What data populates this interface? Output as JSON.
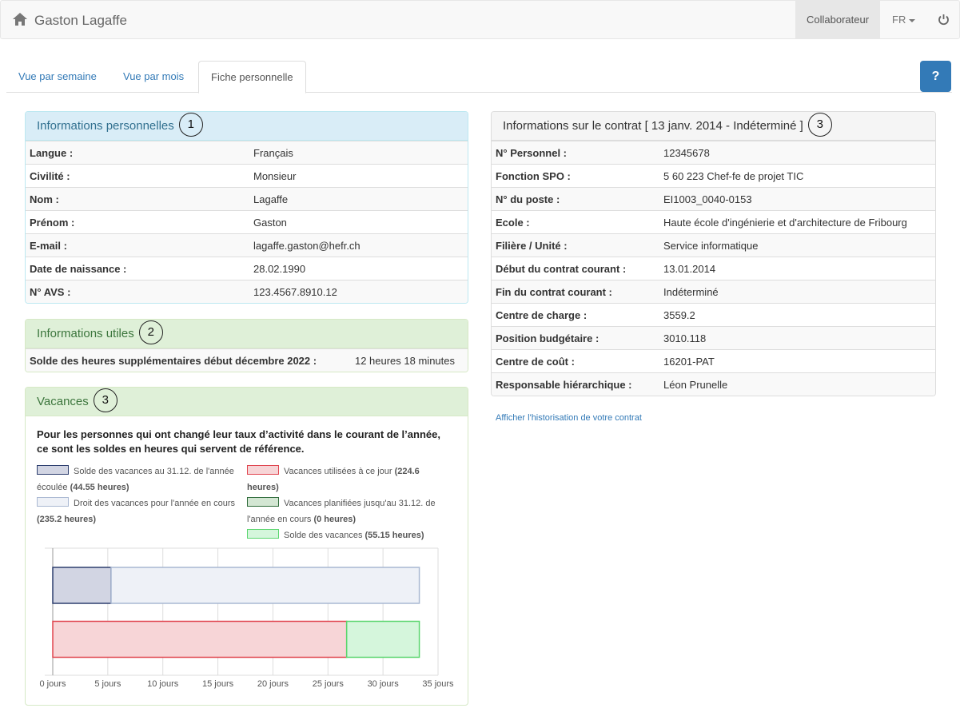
{
  "navbar": {
    "brand": "Gaston Lagaffe",
    "user": "Collaborateur",
    "language": "FR"
  },
  "tabs": [
    "Vue par semaine",
    "Vue par mois",
    "Fiche personnelle"
  ],
  "help": "?",
  "personal": {
    "title": "Informations personnelles",
    "badge": "1",
    "rows": [
      [
        "Langue :",
        "Français"
      ],
      [
        "Civilité :",
        "Monsieur"
      ],
      [
        "Nom :",
        "Lagaffe"
      ],
      [
        "Prénom :",
        "Gaston"
      ],
      [
        "E-mail :",
        "lagaffe.gaston@hefr.ch"
      ],
      [
        "Date de naissance :",
        "28.02.1990"
      ],
      [
        "N° AVS :",
        "123.4567.8910.12"
      ]
    ]
  },
  "useful": {
    "title": "Informations utiles",
    "badge": "2",
    "rows": [
      [
        "Solde des heures supplémentaires début décembre 2022 :",
        "12 heures 18 minutes"
      ]
    ]
  },
  "vacation": {
    "title": "Vacances",
    "badge": "3",
    "intro": "Pour les personnes qui ont changé leur taux d’activité dans le courant de l’année, ce sont les soldes en heures qui servent de référence."
  },
  "contract": {
    "title": "Informations sur le contrat [ 13 janv. 2014 - Indéterminé ]",
    "badge": "3",
    "rows": [
      [
        "N° Personnel :",
        "12345678"
      ],
      [
        "Fonction SPO :",
        "5 60 223 Chef-fe de projet TIC"
      ],
      [
        "N° du poste :",
        "EI1003_0040-0153"
      ],
      [
        "Ecole :",
        "Haute école d'ingénierie et d'architecture de Fribourg"
      ],
      [
        "Filière / Unité :",
        "Service informatique"
      ],
      [
        "Début du contrat courant :",
        "13.01.2014"
      ],
      [
        "Fin du contrat courant :",
        "Indéterminé"
      ],
      [
        "Centre de charge :",
        "3559.2"
      ],
      [
        "Position budgétaire :",
        "3010.118"
      ],
      [
        "Centre de coût :",
        "16201-PAT"
      ],
      [
        "Responsable hiérarchique :",
        "Léon Prunelle"
      ]
    ],
    "link": "Afficher l'historisation de votre contrat"
  },
  "chart_data": {
    "type": "stacked-barh",
    "categories": [
      null,
      null
    ],
    "series": [
      {
        "name": "Solde des vacances au 31.12. de l'année écoulée",
        "detail": "(44.55 heures)",
        "color": "#d2d5e3",
        "border": "#2d3e6e",
        "values": [
          5.3,
          null
        ]
      },
      {
        "name": "Droit des vacances pour l'année en cours",
        "detail": "(235.2 heures)",
        "color": "#eef1f7",
        "border": "#a9b8d2",
        "values": [
          28.0,
          null
        ]
      },
      {
        "name": "Vacances utilisées à ce jour",
        "detail": "(224.6 heures)",
        "color": "#f7d5d7",
        "border": "#e0454f",
        "values": [
          null,
          26.7
        ]
      },
      {
        "name": "Vacances planifiées jusqu'au 31.12. de l'année en cours",
        "detail": "(0 heures)",
        "color": "#d3e6d3",
        "border": "#2e6b3a",
        "values": [
          null,
          0
        ]
      },
      {
        "name": "Solde des vacances",
        "detail": "(55.15 heures)",
        "color": "#d5f6dc",
        "border": "#5ad66e",
        "values": [
          null,
          6.6
        ]
      }
    ],
    "xlim": [
      0,
      35
    ],
    "xticks": [
      {
        "value": 0,
        "label": "0 jours"
      },
      {
        "value": 5,
        "label": "5 jours"
      },
      {
        "value": 10,
        "label": "10 jours"
      },
      {
        "value": 15,
        "label": "15 jours"
      },
      {
        "value": 20,
        "label": "20 jours"
      },
      {
        "value": 25,
        "label": "25 jours"
      },
      {
        "value": 30,
        "label": "30 jours"
      },
      {
        "value": 35,
        "label": "35 jours"
      }
    ],
    "grid": true
  }
}
